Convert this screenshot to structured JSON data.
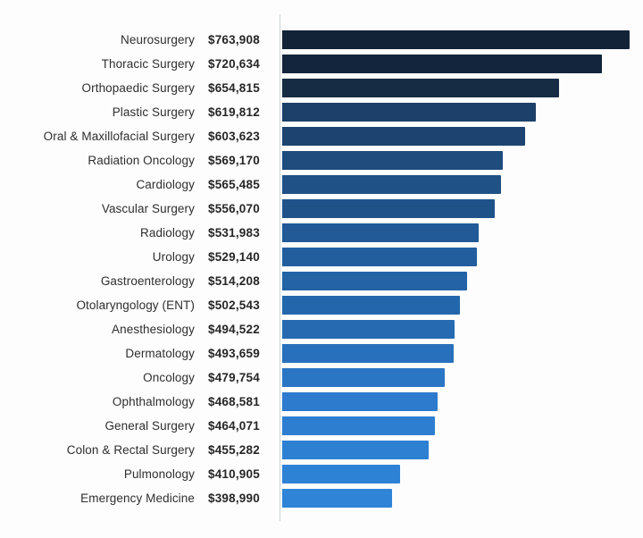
{
  "chart_data": {
    "type": "bar",
    "orientation": "horizontal",
    "title": "",
    "xlabel": "",
    "ylabel": "",
    "categories": [
      "Neurosurgery",
      "Thoracic Surgery",
      "Orthopaedic Surgery",
      "Plastic Surgery",
      "Oral & Maxillofacial Surgery",
      "Radiation Oncology",
      "Cardiology",
      "Vascular Surgery",
      "Radiology",
      "Urology",
      "Gastroenterology",
      "Otolaryngology (ENT)",
      "Anesthesiology",
      "Dermatology",
      "Oncology",
      "Ophthalmology",
      "General Surgery",
      "Colon & Rectal Surgery",
      "Pulmonology",
      "Emergency Medicine"
    ],
    "values": [
      763908,
      720634,
      654815,
      619812,
      603623,
      569170,
      565485,
      556070,
      531983,
      529140,
      514208,
      502543,
      494522,
      493659,
      479754,
      468581,
      464071,
      455282,
      410905,
      398990
    ],
    "value_labels": [
      "$763,908",
      "$720,634",
      "$654,815",
      "$619,812",
      "$603,623",
      "$569,170",
      "$565,485",
      "$556,070",
      "$531,983",
      "$529,140",
      "$514,208",
      "$502,543",
      "$494,522",
      "$493,659",
      "$479,754",
      "$468,581",
      "$464,071",
      "$455,282",
      "$410,905",
      "$398,990"
    ],
    "xlim": [
      230000,
      780000
    ],
    "grid": false,
    "legend": false,
    "bar_colors": [
      "#122337",
      "#13253c",
      "#162b44",
      "#1c4069",
      "#1d4471",
      "#1f4b7d",
      "#1f5186",
      "#20528a",
      "#215a96",
      "#225e9e",
      "#2363a6",
      "#2466ab",
      "#266ab2",
      "#2870bc",
      "#2a75c4",
      "#2c7bcc",
      "#2d7ed0",
      "#2e80d3",
      "#2e82d6",
      "#2f84d8"
    ],
    "axis_line_color": "#ccd2d8",
    "label_text_color": "#2e2e2e",
    "value_text_color": "#262626"
  }
}
